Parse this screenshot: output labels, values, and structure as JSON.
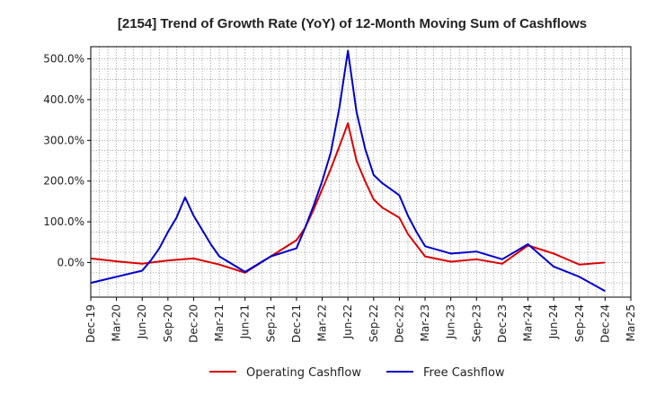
{
  "chart_data": {
    "type": "line",
    "title": "[2154]  Trend of Growth Rate (YoY) of 12-Month Moving Sum of Cashflows",
    "xlabel": "",
    "ylabel": "",
    "x_tick_labels": [
      "Dec-19",
      "Mar-20",
      "Jun-20",
      "Sep-20",
      "Dec-20",
      "Mar-21",
      "Jun-21",
      "Sep-21",
      "Dec-21",
      "Mar-22",
      "Jun-22",
      "Sep-22",
      "Dec-22",
      "Mar-23",
      "Jun-23",
      "Sep-23",
      "Dec-23",
      "Mar-24",
      "Jun-24",
      "Sep-24",
      "Dec-24",
      "Mar-25"
    ],
    "y_ticks": [
      0,
      100,
      200,
      300,
      400,
      500
    ],
    "y_tick_labels": [
      "0.0%",
      "100.0%",
      "200.0%",
      "300.0%",
      "400.0%",
      "500.0%"
    ],
    "ylim": [
      -85,
      530
    ],
    "x_range_months": [
      0,
      63
    ],
    "grid": true,
    "legend_position": "bottom-center",
    "series": [
      {
        "name": "Operating Cashflow",
        "color": "#dd0000",
        "points": [
          [
            0,
            10
          ],
          [
            3,
            3
          ],
          [
            6,
            -3
          ],
          [
            9,
            5
          ],
          [
            12,
            10
          ],
          [
            15,
            -5
          ],
          [
            18,
            -25
          ],
          [
            21,
            15
          ],
          [
            24,
            55
          ],
          [
            25,
            85
          ],
          [
            26,
            130
          ],
          [
            27,
            180
          ],
          [
            28,
            230
          ],
          [
            29,
            285
          ],
          [
            30,
            342
          ],
          [
            31,
            250
          ],
          [
            32,
            200
          ],
          [
            33,
            155
          ],
          [
            34,
            135
          ],
          [
            36,
            110
          ],
          [
            37,
            70
          ],
          [
            39,
            15
          ],
          [
            42,
            2
          ],
          [
            45,
            8
          ],
          [
            48,
            -3
          ],
          [
            51,
            42
          ],
          [
            54,
            22
          ],
          [
            57,
            -5
          ],
          [
            60,
            0
          ]
        ]
      },
      {
        "name": "Free Cashflow",
        "color": "#0000cc",
        "points": [
          [
            0,
            -50
          ],
          [
            3,
            -35
          ],
          [
            6,
            -20
          ],
          [
            7,
            5
          ],
          [
            8,
            35
          ],
          [
            9,
            75
          ],
          [
            10,
            110
          ],
          [
            11,
            160
          ],
          [
            12,
            115
          ],
          [
            13,
            80
          ],
          [
            14,
            45
          ],
          [
            15,
            15
          ],
          [
            18,
            -23
          ],
          [
            21,
            15
          ],
          [
            24,
            35
          ],
          [
            25,
            85
          ],
          [
            26,
            140
          ],
          [
            27,
            200
          ],
          [
            28,
            270
          ],
          [
            29,
            380
          ],
          [
            30,
            520
          ],
          [
            31,
            370
          ],
          [
            32,
            280
          ],
          [
            33,
            215
          ],
          [
            34,
            195
          ],
          [
            36,
            165
          ],
          [
            37,
            115
          ],
          [
            38,
            75
          ],
          [
            39,
            40
          ],
          [
            42,
            22
          ],
          [
            45,
            27
          ],
          [
            48,
            8
          ],
          [
            51,
            45
          ],
          [
            54,
            -10
          ],
          [
            57,
            -35
          ],
          [
            60,
            -70
          ]
        ]
      }
    ]
  }
}
